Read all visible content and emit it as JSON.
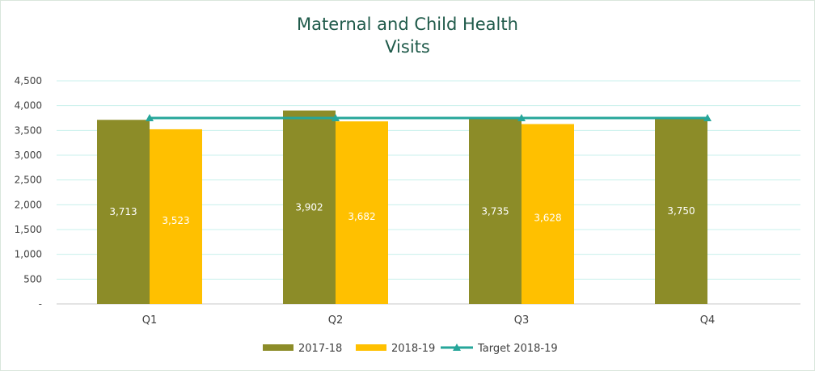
{
  "chart_data": {
    "type": "bar",
    "title_line1": "Maternal and Child Health",
    "title_line2": "Visits",
    "xlabel": "",
    "ylabel": "",
    "categories": [
      "Q1",
      "Q2",
      "Q3",
      "Q4"
    ],
    "ylim": [
      0,
      4500
    ],
    "yticks": [
      0,
      500,
      1000,
      1500,
      2000,
      2500,
      3000,
      3500,
      4000,
      4500
    ],
    "ytick_labels": [
      "-",
      "500",
      "1,000",
      "1,500",
      "2,000",
      "2,500",
      "3,000",
      "3,500",
      "4,000",
      "4,500"
    ],
    "series": [
      {
        "name": "2017-18",
        "kind": "bar",
        "color": "#8c8c28",
        "values": [
          3713,
          3902,
          3735,
          3750
        ],
        "labels": [
          "3,713",
          "3,902",
          "3,735",
          "3,750"
        ]
      },
      {
        "name": "2018-19",
        "kind": "bar",
        "color": "#ffc000",
        "values": [
          3523,
          3682,
          3628,
          null
        ],
        "labels": [
          "3,523",
          "3,682",
          "3,628",
          ""
        ]
      },
      {
        "name": "Target 2018-19",
        "kind": "line",
        "color": "#26a69a",
        "marker": "triangle",
        "values": [
          3750,
          3750,
          3750,
          3750
        ]
      }
    ],
    "grid": true,
    "gridline_color": "#c8f0ec",
    "legend_position": "bottom"
  }
}
